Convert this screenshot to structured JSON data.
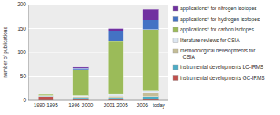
{
  "chart_data": {
    "type": "bar",
    "stacked": true,
    "categories": [
      "1990-1995",
      "1996-2000",
      "2001-2005",
      "2006 - today"
    ],
    "series": [
      {
        "name": "instrumental developments GC-IRMS",
        "color": "#c0504d",
        "values": [
          7,
          3,
          2,
          2
        ]
      },
      {
        "name": "instrumental developments LC-IRMS",
        "color": "#4bacc6",
        "values": [
          1,
          2,
          3,
          5
        ]
      },
      {
        "name": "methodological developments for\n  CSIA",
        "color": "#c4bd97",
        "values": [
          1,
          2,
          3,
          8
        ]
      },
      {
        "name": "literature reviews for CSIA",
        "color": "#dce6f1",
        "values": [
          0,
          2,
          5,
          5
        ]
      },
      {
        "name": "applications* for carbon isotopes",
        "color": "#9bbb59",
        "values": [
          4,
          55,
          110,
          128
        ]
      },
      {
        "name": "applications* for hydrogen isotopes",
        "color": "#4472c4",
        "values": [
          0,
          3,
          22,
          20
        ]
      },
      {
        "name": "applications* for nitrogen isotopes",
        "color": "#7030a0",
        "values": [
          0,
          2,
          5,
          22
        ]
      }
    ],
    "ylim": [
      0,
      200
    ],
    "yticks": [
      0,
      50,
      100,
      150,
      200
    ],
    "ylabel": "number of publications",
    "grid": true,
    "legend": "right"
  }
}
